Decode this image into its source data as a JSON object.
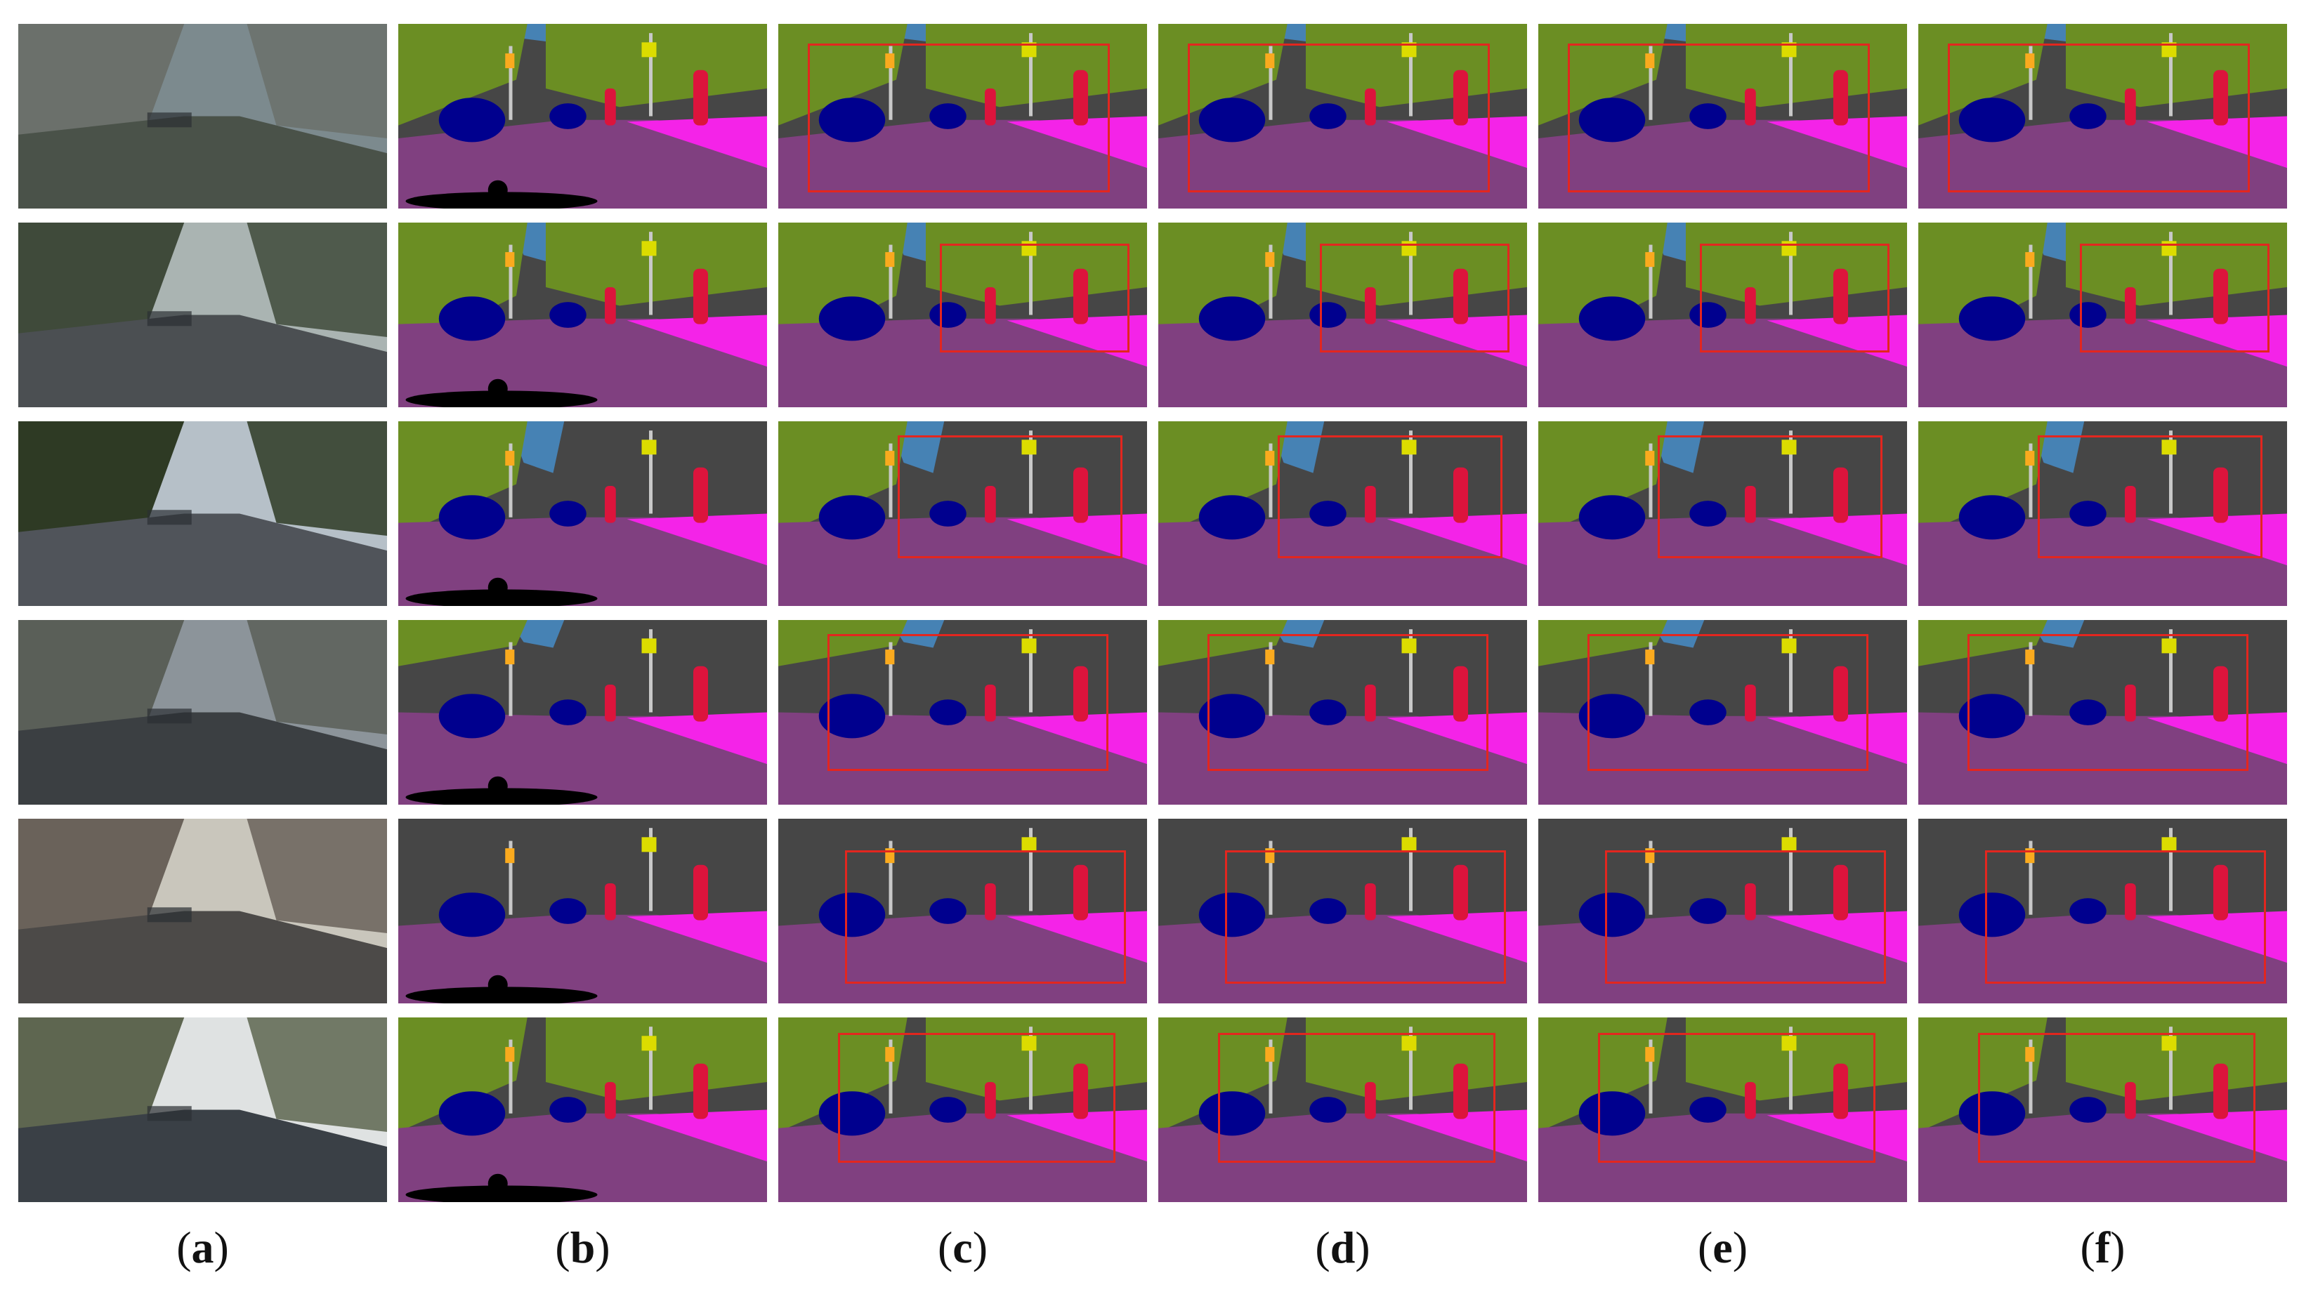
{
  "figure": {
    "column_labels": [
      "a",
      "b",
      "c",
      "d",
      "e",
      "f"
    ],
    "rows": 6,
    "colors": {
      "road": "#804080",
      "sidewalk": "#f423e8",
      "building": "#464646",
      "vegetation": "#6b8e23",
      "sky": "#4682b4",
      "car": "#00008e",
      "person": "#dc143c",
      "rider": "#ff0000",
      "bicycle": "#770b20",
      "traffic_sign": "#dcdc00",
      "traffic_light": "#faaa1e",
      "pole": "#c8c8c8",
      "void": "#000000",
      "highlight_box": "#e3261f"
    }
  }
}
